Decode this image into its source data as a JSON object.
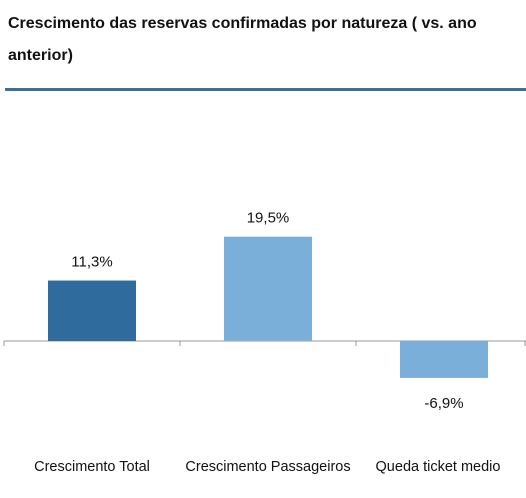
{
  "chart_data": {
    "type": "bar",
    "title": "Crescimento das reservas confirmadas por natureza ( vs. ano anterior)",
    "categories": [
      "Crescimento Total",
      "Crescimento Passageiros",
      "Queda ticket medio"
    ],
    "values": [
      11.3,
      19.5,
      -6.9
    ],
    "value_labels": [
      "11,3%",
      "19,5%",
      "-6,9%"
    ],
    "colors": [
      "#2f6b9c",
      "#7aafda",
      "#7aafda"
    ]
  }
}
